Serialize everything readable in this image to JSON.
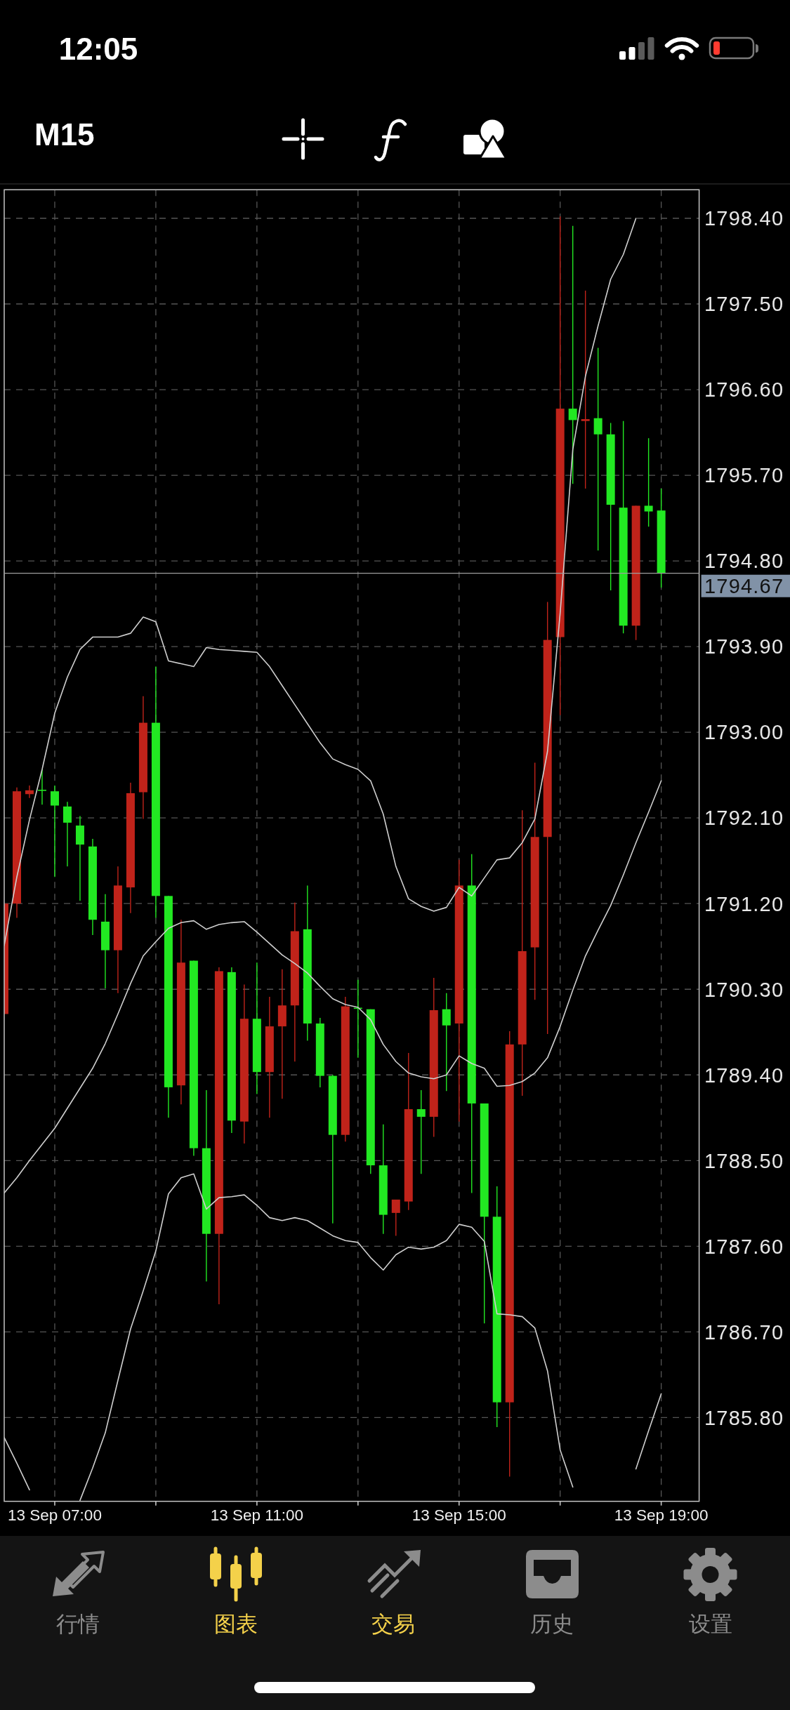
{
  "chart_data": {
    "type": "candlestick",
    "title": "M15",
    "categories": [
      null,
      null,
      null,
      null,
      "13 Sep 07:00",
      null,
      null,
      null,
      null,
      null,
      null,
      null,
      null,
      null,
      null,
      null,
      null,
      null,
      null,
      null,
      "13 Sep 11:00",
      null,
      null,
      null,
      null,
      null,
      null,
      null,
      null,
      null,
      null,
      null,
      null,
      null,
      null,
      null,
      "13 Sep 15:00",
      null,
      null,
      null,
      null,
      null,
      null,
      null,
      null,
      null,
      null,
      null,
      null,
      null,
      null,
      null,
      "13 Sep 19:00"
    ],
    "ohlc": [
      [
        1790.04,
        1791.2,
        1790.04,
        1791.2
      ],
      [
        1791.2,
        1792.42,
        1791.05,
        1792.38
      ],
      [
        1792.35,
        1792.44,
        1792.31,
        1792.39
      ],
      [
        1792.39,
        1792.61,
        1792.24,
        1792.39
      ],
      [
        1792.38,
        1792.44,
        1791.48,
        1792.23
      ],
      [
        1792.22,
        1792.27,
        1791.59,
        1792.05
      ],
      [
        1792.02,
        1792.12,
        1791.23,
        1791.82
      ],
      [
        1791.8,
        1791.88,
        1790.87,
        1791.03
      ],
      [
        1791.01,
        1791.3,
        1790.31,
        1790.71
      ],
      [
        1790.71,
        1791.59,
        1790.26,
        1791.39
      ],
      [
        1791.37,
        1792.47,
        1791.1,
        1792.36
      ],
      [
        1792.37,
        1793.38,
        1792.09,
        1793.1
      ],
      [
        1793.1,
        1793.69,
        1791.05,
        1791.28
      ],
      [
        1791.28,
        1791.28,
        1788.95,
        1789.27
      ],
      [
        1789.29,
        1791.03,
        1789.09,
        1790.58
      ],
      [
        1790.6,
        1790.6,
        1788.55,
        1788.63
      ],
      [
        1788.63,
        1789.24,
        1787.23,
        1787.73
      ],
      [
        1787.73,
        1790.53,
        1786.99,
        1790.49
      ],
      [
        1790.48,
        1790.53,
        1788.79,
        1788.92
      ],
      [
        1788.91,
        1790.35,
        1788.68,
        1789.99
      ],
      [
        1789.99,
        1790.58,
        1789.2,
        1789.43
      ],
      [
        1789.43,
        1790.22,
        1788.95,
        1789.91
      ],
      [
        1789.91,
        1790.51,
        1789.15,
        1790.13
      ],
      [
        1790.13,
        1791.21,
        1789.54,
        1790.91
      ],
      [
        1790.93,
        1791.39,
        1789.76,
        1789.94
      ],
      [
        1789.94,
        1790,
        1789.27,
        1789.39
      ],
      [
        1789.39,
        1789.4,
        1787.84,
        1788.77
      ],
      [
        1788.77,
        1790.22,
        1788.7,
        1790.12
      ],
      [
        1790.1,
        1790.4,
        1789.58,
        1790.1
      ],
      [
        1790.09,
        1790.09,
        1788.36,
        1788.45
      ],
      [
        1788.45,
        1788.88,
        1787.73,
        1787.93
      ],
      [
        1787.95,
        1788.09,
        1787.71,
        1788.09
      ],
      [
        1788.07,
        1789.63,
        1787.98,
        1789.04
      ],
      [
        1789.04,
        1789.24,
        1788.36,
        1788.96
      ],
      [
        1788.96,
        1790.42,
        1788.75,
        1790.08
      ],
      [
        1790.09,
        1790.26,
        1789.23,
        1789.92
      ],
      [
        1789.94,
        1791.66,
        1788.91,
        1791.39
      ],
      [
        1791.39,
        1791.72,
        1788.16,
        1789.1
      ],
      [
        1789.1,
        1789.1,
        1786.79,
        1787.91
      ],
      [
        1787.91,
        1788.23,
        1785.7,
        1785.96
      ],
      [
        1785.96,
        1789.86,
        1785.18,
        1789.72
      ],
      [
        1789.72,
        1792.18,
        1789.18,
        1790.7
      ],
      [
        1790.74,
        1792.68,
        1790.19,
        1791.9
      ],
      [
        1791.9,
        1794.37,
        1789.83,
        1793.97
      ],
      [
        1794,
        1798.42,
        1793.18,
        1796.4
      ],
      [
        1796.4,
        1798.32,
        1795.61,
        1796.28
      ],
      [
        1796.27,
        1797.64,
        1795.56,
        1796.29
      ],
      [
        1796.3,
        1797.04,
        1794.91,
        1796.13
      ],
      [
        1796.13,
        1796.25,
        1794.49,
        1795.39
      ],
      [
        1795.36,
        1796.27,
        1794.04,
        1794.12
      ],
      [
        1794.12,
        1795.38,
        1793.97,
        1795.38
      ],
      [
        1795.38,
        1796.09,
        1795.16,
        1795.32
      ],
      [
        1795.33,
        1795.56,
        1794.52,
        1794.67
      ]
    ],
    "colors": [
      "#c0231a",
      "#c0231a",
      "#c0231a",
      "#22e822",
      "#22e822",
      "#22e822",
      "#22e822",
      "#22e822",
      "#22e822",
      "#c0231a",
      "#c0231a",
      "#c0231a",
      "#22e822",
      "#22e822",
      "#c0231a",
      "#22e822",
      "#22e822",
      "#c0231a",
      "#22e822",
      "#c0231a",
      "#22e822",
      "#c0231a",
      "#c0231a",
      "#c0231a",
      "#22e822",
      "#22e822",
      "#22e822",
      "#c0231a",
      "#22e822",
      "#22e822",
      "#22e822",
      "#c0231a",
      "#c0231a",
      "#22e822",
      "#c0231a",
      "#22e822",
      "#c0231a",
      "#22e822",
      "#22e822",
      "#22e822",
      "#c0231a",
      "#c0231a",
      "#c0231a",
      "#c0231a",
      "#c0231a",
      "#22e822",
      "#c0231a",
      "#22e822",
      "#22e822",
      "#22e822",
      "#c0231a",
      "#22e822",
      "#22e822"
    ],
    "series": [
      {
        "type": "line",
        "color": "#cfcfcf",
        "values": [
          1790.76,
          1791.48,
          1792.08,
          1792.61,
          1793.2,
          1793.58,
          1793.87,
          1794,
          1794,
          1794,
          1794.04,
          1794.21,
          1794.16,
          1793.75,
          1793.72,
          1793.69,
          1793.89,
          1793.87,
          1793.86,
          1793.85,
          1793.84,
          1793.69,
          1793.49,
          1793.29,
          1793.09,
          1792.89,
          1792.72,
          1792.66,
          1792.61,
          1792.49,
          1792.14,
          1791.59,
          1791.25,
          1791.17,
          1791.12,
          1791.16,
          1791.37,
          1791.28,
          1791.47,
          1791.66,
          1791.68,
          1791.84,
          1792.09,
          1792.8,
          1794.25,
          1795.97,
          1796.74,
          1797.27,
          1797.76,
          1798.02,
          1798.4,
          null,
          null
        ]
      },
      {
        "type": "line",
        "color": "#cfcfcf",
        "values": [
          1788.16,
          1788.32,
          1788.5,
          1788.67,
          1788.84,
          1789.05,
          1789.26,
          1789.47,
          1789.73,
          1790.04,
          1790.36,
          1790.65,
          1790.8,
          1790.94,
          1791,
          1791.02,
          1790.93,
          1790.98,
          1791,
          1791.01,
          1790.9,
          1790.78,
          1790.66,
          1790.57,
          1790.47,
          1790.33,
          1790.2,
          1790.14,
          1790.11,
          1789.98,
          1789.72,
          1789.54,
          1789.42,
          1789.38,
          1789.36,
          1789.4,
          1789.6,
          1789.52,
          1789.47,
          1789.28,
          1789.29,
          1789.33,
          1789.42,
          1789.58,
          1789.91,
          1790.29,
          1790.65,
          1790.92,
          1791.18,
          1791.5,
          1791.84,
          1792.16,
          1792.49
        ]
      },
      {
        "type": "line",
        "color": "#cfcfcf",
        "values": [
          1785.59,
          1785.32,
          1785.04,
          null,
          null,
          null,
          1784.93,
          1785.27,
          1785.64,
          1786.19,
          1786.73,
          1787.13,
          1787.55,
          1788.15,
          1788.32,
          1788.36,
          1787.99,
          1788.11,
          1788.12,
          1788.14,
          1788.03,
          1787.9,
          1787.87,
          1787.9,
          1787.87,
          1787.79,
          1787.71,
          1787.66,
          1787.64,
          1787.48,
          1787.35,
          1787.51,
          1787.59,
          1787.57,
          1787.59,
          1787.66,
          1787.83,
          1787.8,
          1787.65,
          1786.89,
          1786.88,
          1786.86,
          1786.74,
          1786.29,
          1785.46,
          1785.07,
          null,
          null,
          null,
          null,
          1785.26,
          1785.66,
          1786.05
        ]
      }
    ],
    "ylim": [
      1784.92,
      1798.7
    ],
    "yticks": [
      {
        "value": 1785.8,
        "label": "1785.80"
      },
      {
        "value": 1786.7,
        "label": "1786.70"
      },
      {
        "value": 1787.6,
        "label": "1787.60"
      },
      {
        "value": 1788.5,
        "label": "1788.50"
      },
      {
        "value": 1789.4,
        "label": "1789.40"
      },
      {
        "value": 1790.3,
        "label": "1790.30"
      },
      {
        "value": 1791.2,
        "label": "1791.20"
      },
      {
        "value": 1792.1,
        "label": "1792.10"
      },
      {
        "value": 1793.0,
        "label": "1793.00"
      },
      {
        "value": 1793.9,
        "label": "1793.90"
      },
      {
        "value": 1794.8,
        "label": "1794.80"
      },
      {
        "value": 1795.7,
        "label": "1795.70"
      },
      {
        "value": 1796.6,
        "label": "1796.60"
      },
      {
        "value": 1797.5,
        "label": "1797.50"
      },
      {
        "value": 1798.4,
        "label": "1798.40"
      }
    ],
    "grid": true,
    "ref_lines": [
      {
        "axis": "y",
        "value": 1794.67,
        "label": "1794.67",
        "color": "#9e9e9e"
      }
    ],
    "annotations": [
      "12:05",
      "行情",
      "图表",
      "交易",
      "历史",
      "设置"
    ]
  }
}
